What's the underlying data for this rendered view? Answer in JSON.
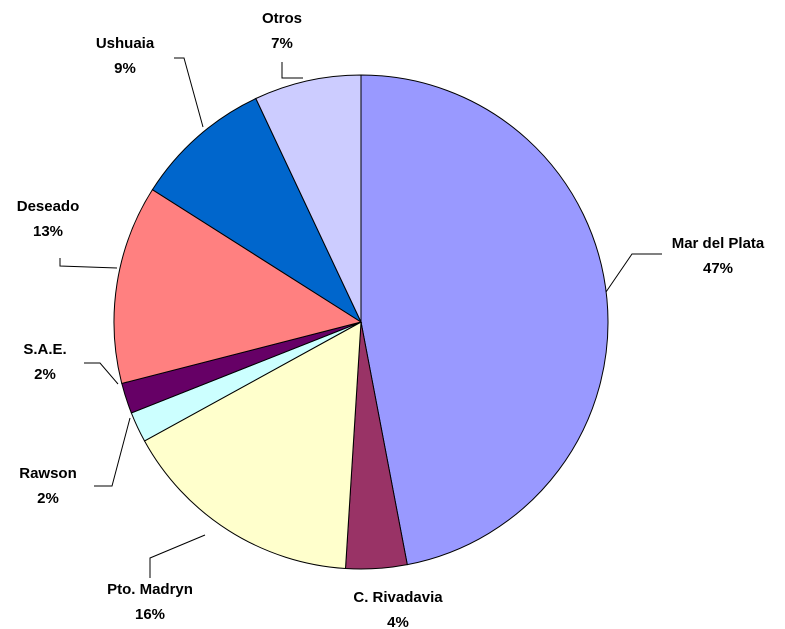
{
  "chart_data": {
    "type": "pie",
    "categories": [
      "Mar del Plata",
      "C. Rivadavia",
      "Pto. Madryn",
      "Rawson",
      "S.A.E.",
      "Deseado",
      "Ushuaia",
      "Otros"
    ],
    "values": [
      47,
      4,
      16,
      2,
      2,
      13,
      9,
      7
    ],
    "value_labels": [
      "47%",
      "4%",
      "16%",
      "2%",
      "2%",
      "13%",
      "9%",
      "7%"
    ],
    "colors": [
      "#9999ff",
      "#993366",
      "#ffffcc",
      "#ccffff",
      "#660066",
      "#ff8080",
      "#0066cc",
      "#ccccff"
    ]
  }
}
